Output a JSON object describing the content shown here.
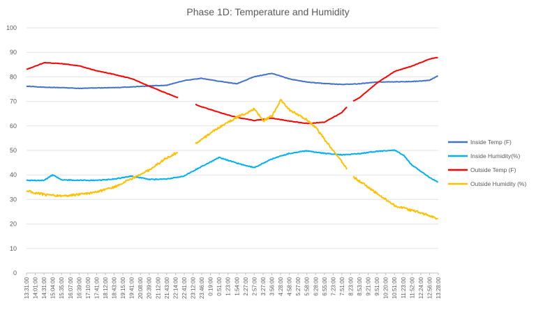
{
  "chart_data": {
    "type": "line",
    "title": "Phase 1D: Temperature and Humidity",
    "ylim": [
      0,
      100
    ],
    "yticks": [
      0,
      10,
      20,
      30,
      40,
      50,
      60,
      70,
      80,
      90,
      100
    ],
    "grid": true,
    "legend_position": "right",
    "x_tick_labels": [
      "13:31:00",
      "14:01:00",
      "14:31:00",
      "15:04:00",
      "15:35:00",
      "16:07:00",
      "16:39:00",
      "17:10:00",
      "17:41:00",
      "18:12:00",
      "18:43:00",
      "19:15:00",
      "19:41:00",
      "20:08:00",
      "20:39:00",
      "21:12:00",
      "21:43:00",
      "22:14:00",
      "22:41:00",
      "23:12:00",
      "23:46:00",
      "0:19:00",
      "0:51:00",
      "1:23:00",
      "1:54:00",
      "2:27:00",
      "2:57:00",
      "3:27:00",
      "3:56:00",
      "4:28:00",
      "4:58:00",
      "5:27:00",
      "5:58:00",
      "6:28:00",
      "6:55:00",
      "7:23:00",
      "7:51:00",
      "8:23:00",
      "8:53:00",
      "9:21:00",
      "9:51:00",
      "10:20:00",
      "10:51:00",
      "11:23:00",
      "11:52:00",
      "12:24:00",
      "12:56:00",
      "13:28:00"
    ],
    "series": [
      {
        "name": "Inside Temp (F)",
        "color": "#4472C4",
        "x": [
          0,
          2,
          4,
          6,
          8,
          10,
          12,
          14,
          16,
          18,
          20,
          22,
          24,
          26,
          28,
          30,
          32,
          34,
          36,
          38,
          40,
          42,
          44,
          46,
          47
        ],
        "values": [
          76.2,
          75.8,
          75.6,
          75.3,
          75.5,
          75.6,
          75.9,
          76.3,
          76.6,
          78.5,
          79.4,
          78.2,
          77.2,
          80.1,
          81.4,
          79.2,
          77.9,
          77.3,
          76.9,
          77.2,
          77.9,
          78.0,
          78.1,
          78.6,
          80.5
        ],
        "gaps": []
      },
      {
        "name": "Inside Humidity(%)",
        "color": "#00B0F0",
        "x": [
          0,
          2,
          3,
          4,
          6,
          8,
          10,
          12,
          14,
          16,
          18,
          20,
          22,
          24,
          26,
          28,
          30,
          32,
          34,
          36,
          38,
          40,
          42,
          43,
          44,
          45,
          46,
          47
        ],
        "values": [
          37.8,
          37.8,
          40.0,
          38.0,
          37.8,
          37.8,
          38.3,
          39.5,
          38.2,
          38.3,
          39.6,
          43.5,
          47.1,
          44.8,
          43.0,
          46.5,
          48.8,
          49.8,
          48.8,
          48.2,
          48.7,
          49.6,
          50.1,
          48.2,
          44.0,
          41.5,
          39.0,
          37.0
        ],
        "gaps": []
      },
      {
        "name": "Outside Temp (F)",
        "color": "#FF0000",
        "x": [
          0,
          2,
          4,
          6,
          8,
          10,
          12,
          14,
          16,
          18,
          20,
          22,
          24,
          26,
          28,
          30,
          32,
          34,
          35,
          36,
          37,
          38,
          40,
          42,
          44,
          46,
          47
        ],
        "values": [
          83.0,
          85.8,
          85.4,
          84.5,
          82.5,
          81.0,
          79.3,
          76.2,
          73.3,
          70.5,
          67.8,
          65.5,
          63.5,
          62.2,
          63.2,
          62.0,
          61.0,
          61.5,
          63.5,
          65.5,
          69.5,
          71.5,
          77.5,
          82.2,
          84.4,
          87.3,
          88.0
        ],
        "gaps": [
          [
            17.3,
            19.2
          ],
          [
            36.6,
            37.2
          ]
        ]
      },
      {
        "name": "Outside Humidity (%)",
        "color": "#FFC000",
        "x": [
          0,
          2,
          4,
          6,
          8,
          10,
          12,
          14,
          16,
          17,
          18,
          20,
          22,
          24,
          25,
          26,
          27,
          28,
          29,
          30,
          31,
          32,
          33,
          34,
          35,
          36,
          37,
          38,
          40,
          42,
          44,
          46,
          47
        ],
        "values": [
          33.5,
          32.0,
          31.5,
          32.0,
          33.0,
          35.0,
          38.5,
          42.0,
          47.0,
          48.8,
          50.0,
          54.5,
          59.5,
          63.5,
          65.0,
          67.0,
          62.0,
          64.0,
          70.5,
          66.5,
          64.5,
          62.5,
          59.5,
          54.5,
          50.0,
          45.5,
          40.0,
          37.5,
          32.5,
          27.5,
          25.5,
          23.5,
          21.8
        ],
        "gaps": [
          [
            17.3,
            19.2
          ],
          [
            36.6,
            37.2
          ]
        ]
      }
    ]
  }
}
